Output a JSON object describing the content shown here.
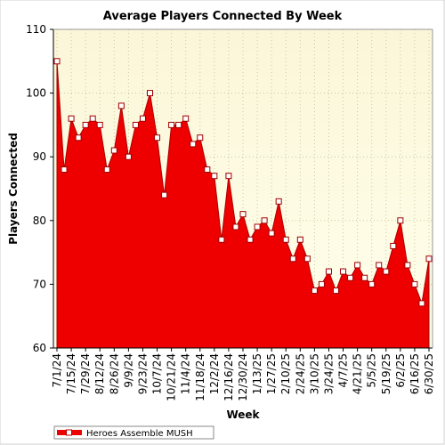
{
  "chart_data": {
    "type": "area",
    "title": "Average Players Connected By Week",
    "xlabel": "Week",
    "ylabel": "Players Connected",
    "ylim": [
      60,
      110
    ],
    "y_ticks": [
      60,
      70,
      80,
      90,
      100,
      110
    ],
    "grid": true,
    "legend_position": "bottom-left",
    "x_tick_labels": [
      "7/1/24",
      "7/15/24",
      "7/29/24",
      "8/12/24",
      "8/26/24",
      "9/9/24",
      "9/23/24",
      "10/7/24",
      "10/21/24",
      "11/4/24",
      "11/18/24",
      "12/2/24",
      "12/16/24",
      "12/30/24",
      "1/13/25",
      "1/27/25",
      "2/10/25",
      "2/24/25",
      "3/10/25",
      "3/24/25",
      "4/7/25",
      "4/21/25",
      "5/5/25",
      "5/19/25",
      "6/2/25",
      "6/16/25",
      "6/30/25"
    ],
    "series": [
      {
        "name": "Heroes Assemble MUSH",
        "color": "#ee0000",
        "values": [
          105,
          88,
          96,
          93,
          95,
          96,
          95,
          88,
          91,
          98,
          90,
          95,
          96,
          100,
          93,
          84,
          95,
          95,
          96,
          92,
          93,
          88,
          87,
          77,
          87,
          79,
          81,
          77,
          79,
          80,
          78,
          83,
          77,
          74,
          77,
          74,
          69,
          70,
          72,
          69,
          72,
          71,
          73,
          71,
          70,
          73,
          72,
          76,
          80,
          73,
          70,
          67,
          74
        ]
      }
    ]
  }
}
